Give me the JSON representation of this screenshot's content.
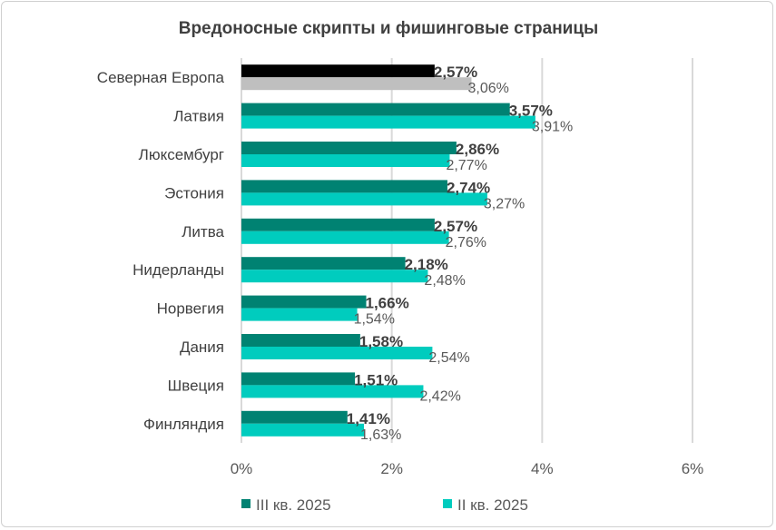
{
  "chart_data": {
    "type": "bar",
    "orientation": "horizontal",
    "title": "Вредоносные скрипты и фишинговые страницы",
    "categories": [
      "Северная Европа",
      "Латвия",
      "Люксембург",
      "Эстония",
      "Литва",
      "Нидерланды",
      "Норвегия",
      "Дания",
      "Швеция",
      "Финляндия"
    ],
    "series": [
      {
        "name": "III кв. 2025",
        "color": "#008272",
        "values": [
          2.57,
          3.57,
          2.86,
          2.74,
          2.57,
          2.18,
          1.66,
          1.58,
          1.51,
          1.41
        ],
        "labels": [
          "2,57%",
          "3,57%",
          "2,86%",
          "2,74%",
          "2,57%",
          "2,18%",
          "1,66%",
          "1,58%",
          "1,51%",
          "1,41%"
        ]
      },
      {
        "name": "II кв. 2025",
        "color": "#00CCBE",
        "values": [
          3.06,
          3.91,
          2.77,
          3.27,
          2.76,
          2.48,
          1.54,
          2.54,
          2.42,
          1.63
        ],
        "labels": [
          "3,06%",
          "3,91%",
          "2,77%",
          "3,27%",
          "2,76%",
          "2,48%",
          "1,54%",
          "2,54%",
          "2,42%",
          "1,63%"
        ]
      }
    ],
    "highlight": {
      "category": "Северная Европа",
      "colors": [
        "#000000",
        "#BFBFBF"
      ]
    },
    "xlim": [
      0,
      6
    ],
    "xticks": [
      0,
      2,
      4,
      6
    ],
    "xtick_labels": [
      "0%",
      "2%",
      "4%",
      "6%"
    ],
    "grid": true,
    "legend": "bottom"
  }
}
